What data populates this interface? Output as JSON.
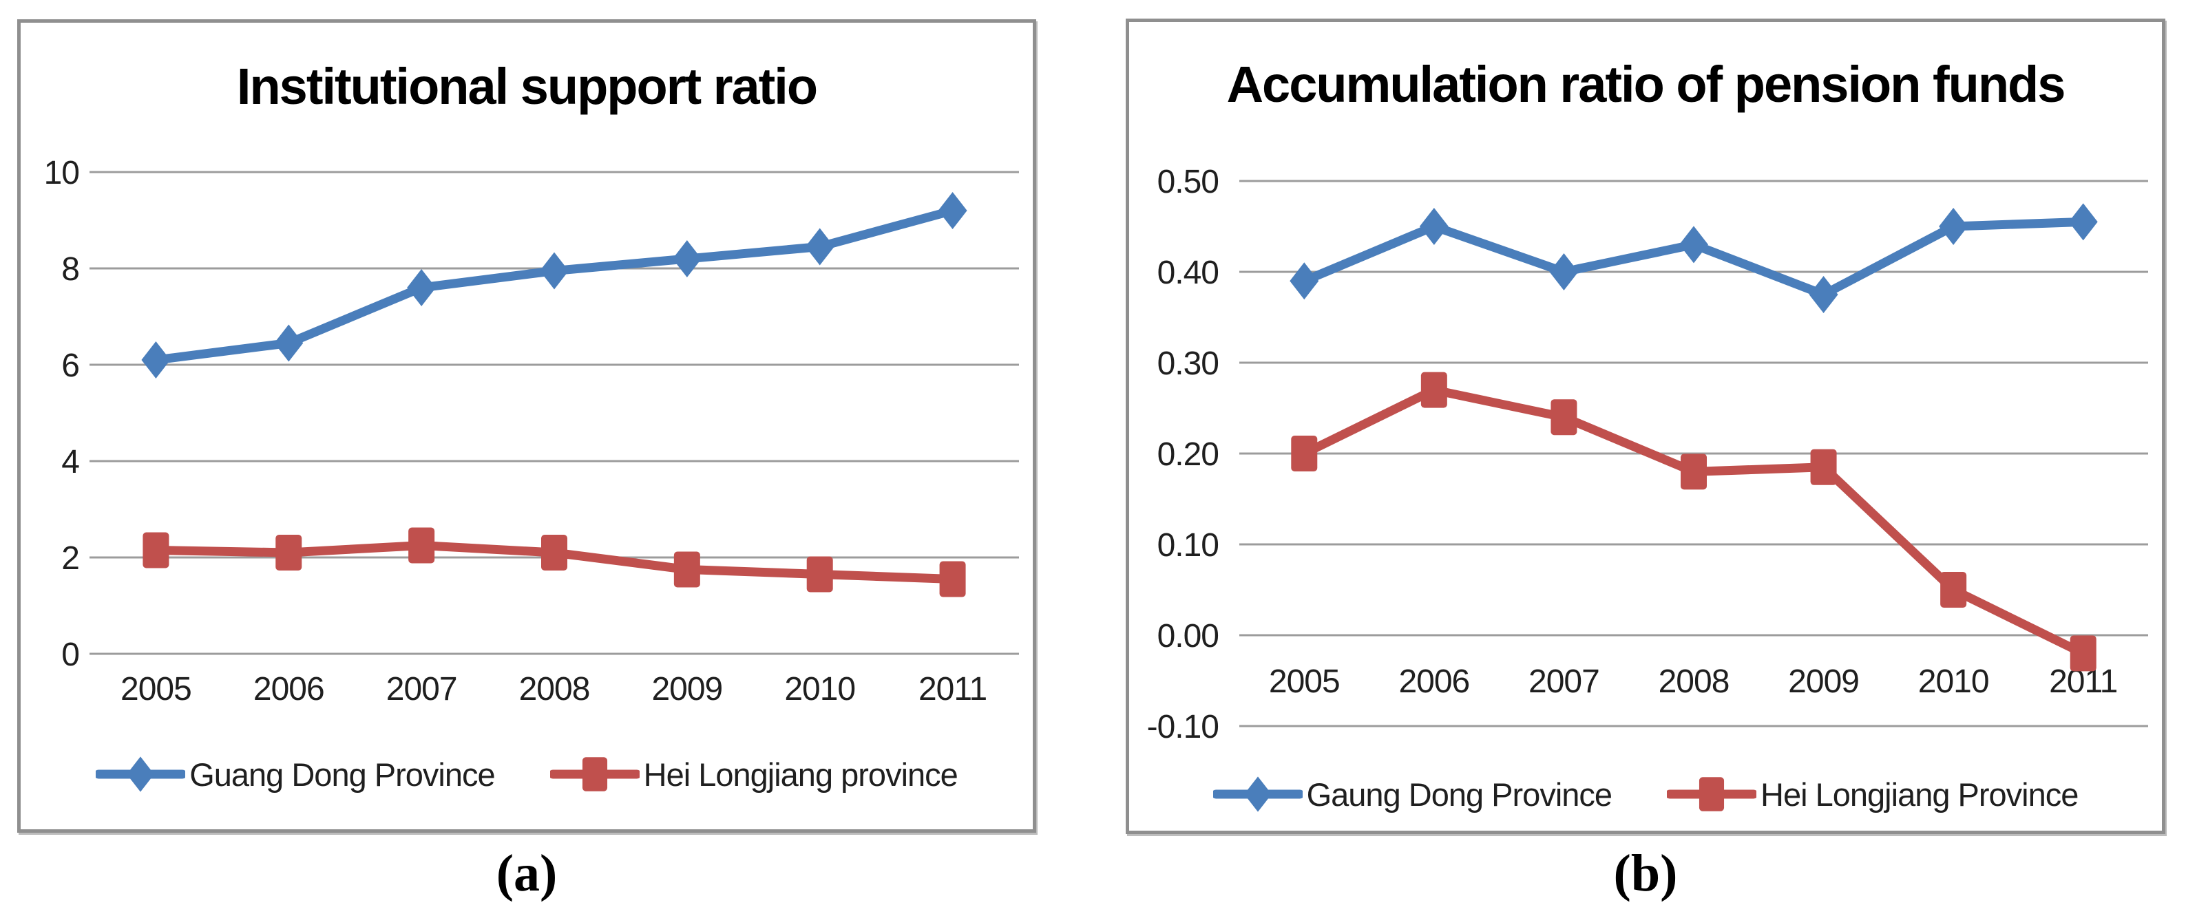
{
  "chart_data": [
    {
      "id": "a",
      "type": "line",
      "title": "Institutional support ratio",
      "caption": "(a)",
      "categories": [
        "2005",
        "2006",
        "2007",
        "2008",
        "2009",
        "2010",
        "2011"
      ],
      "series": [
        {
          "name": "Guang Dong Province",
          "color": "#4A7EBB",
          "marker": "diamond",
          "values": [
            6.1,
            6.45,
            7.6,
            7.95,
            8.2,
            8.45,
            9.2
          ]
        },
        {
          "name": "Hei Longjiang province",
          "color": "#C0504D",
          "marker": "square",
          "values": [
            2.15,
            2.1,
            2.25,
            2.1,
            1.75,
            1.65,
            1.55
          ]
        }
      ],
      "ylim": [
        0,
        10
      ],
      "yticks": [
        {
          "v": 10,
          "label": "10"
        },
        {
          "v": 8,
          "label": "8"
        },
        {
          "v": 6,
          "label": "6"
        },
        {
          "v": 4,
          "label": "4"
        },
        {
          "v": 2,
          "label": "2"
        },
        {
          "v": 0,
          "label": "0"
        }
      ],
      "grid": true,
      "gridline_color": "#9c9c9c",
      "legend_position": "bottom"
    },
    {
      "id": "b",
      "type": "line",
      "title": "Accumulation ratio of pension funds",
      "caption": "(b)",
      "categories": [
        "2005",
        "2006",
        "2007",
        "2008",
        "2009",
        "2010",
        "2011"
      ],
      "series": [
        {
          "name": "Gaung Dong Province",
          "color": "#4A7EBB",
          "marker": "diamond",
          "values": [
            0.39,
            0.45,
            0.4,
            0.43,
            0.375,
            0.45,
            0.455
          ]
        },
        {
          "name": "Hei Longjiang Province",
          "color": "#C0504D",
          "marker": "square",
          "values": [
            0.2,
            0.27,
            0.24,
            0.18,
            0.185,
            0.05,
            -0.02
          ]
        }
      ],
      "ylim": [
        -0.1,
        0.5
      ],
      "yticks": [
        {
          "v": 0.5,
          "label": "0.50"
        },
        {
          "v": 0.4,
          "label": "0.40"
        },
        {
          "v": 0.3,
          "label": "0.30"
        },
        {
          "v": 0.2,
          "label": "0.20"
        },
        {
          "v": 0.1,
          "label": "0.10"
        },
        {
          "v": 0.0,
          "label": "0.00"
        },
        {
          "v": -0.1,
          "label": "-0.10"
        }
      ],
      "grid": true,
      "gridline_color": "#9c9c9c",
      "legend_position": "bottom"
    }
  ]
}
